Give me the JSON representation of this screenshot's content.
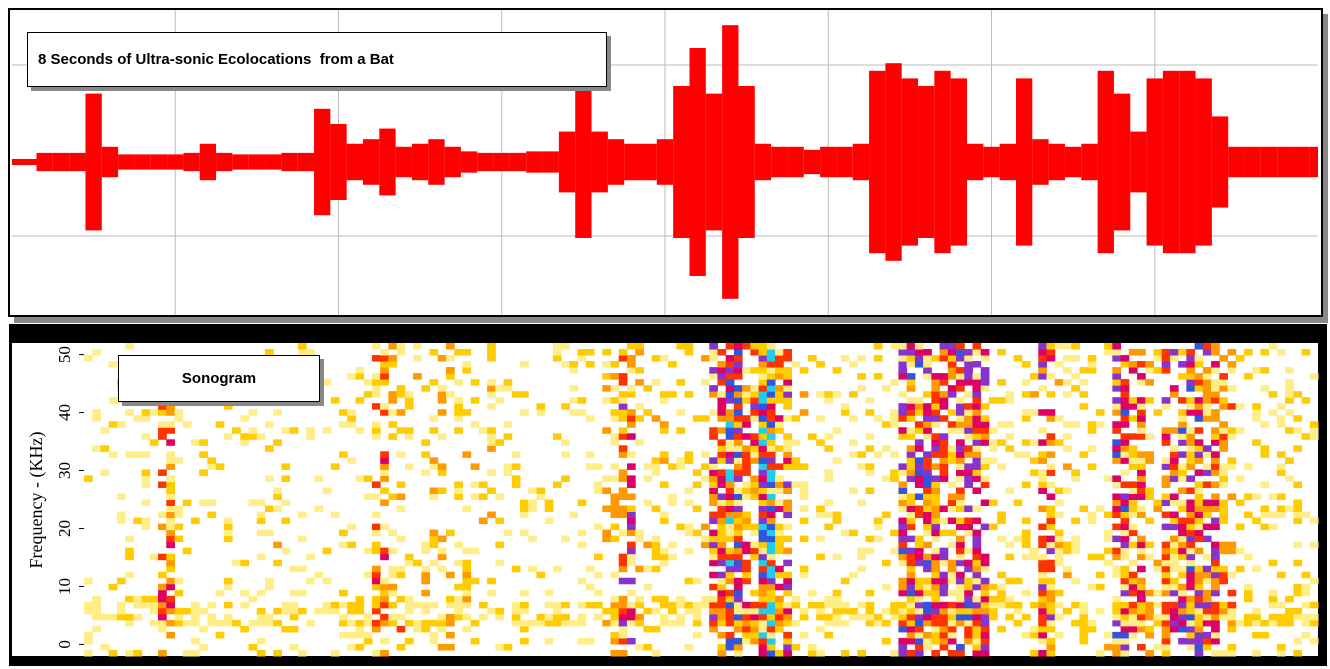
{
  "chart_data": [
    {
      "type": "waveform",
      "title": "8 Seconds of Ultra-sonic Ecolocations  from a Bat",
      "color": "#ff0000",
      "grid": true,
      "xlim": [
        0,
        8
      ],
      "x": [
        0,
        0.1,
        0.2,
        0.3,
        0.4,
        0.5,
        0.6,
        0.7,
        0.8,
        0.9,
        1,
        1.1,
        1.2,
        1.3,
        1.4,
        1.5,
        1.6,
        1.7,
        1.8,
        1.9,
        2,
        2.1,
        2.2,
        2.3,
        2.4,
        2.5,
        2.6,
        2.7,
        2.8,
        2.9,
        3,
        3.1,
        3.2,
        3.3,
        3.4,
        3.5,
        3.6,
        3.7,
        3.8,
        3.9,
        4,
        4.1,
        4.2,
        4.3,
        4.4,
        4.5,
        4.6,
        4.7,
        4.8,
        4.9,
        5,
        5.1,
        5.2,
        5.3,
        5.4,
        5.5,
        5.6,
        5.7,
        5.8,
        5.9,
        6,
        6.1,
        6.2,
        6.3,
        6.4,
        6.5,
        6.6,
        6.7,
        6.8,
        6.9,
        7,
        7.1,
        7.2,
        7.3,
        7.4,
        7.5,
        7.6,
        7.7,
        7.8,
        7.9,
        8
      ],
      "values": [
        0.02,
        0.02,
        0.06,
        0.06,
        0.06,
        0.45,
        0.1,
        0.05,
        0.05,
        0.05,
        0.05,
        0.06,
        0.12,
        0.06,
        0.05,
        0.05,
        0.05,
        0.06,
        0.06,
        0.35,
        0.25,
        0.12,
        0.15,
        0.22,
        0.1,
        0.12,
        0.15,
        0.1,
        0.07,
        0.06,
        0.06,
        0.06,
        0.07,
        0.07,
        0.2,
        0.5,
        0.2,
        0.15,
        0.12,
        0.12,
        0.15,
        0.5,
        0.75,
        0.45,
        0.9,
        0.5,
        0.12,
        0.1,
        0.1,
        0.08,
        0.1,
        0.1,
        0.12,
        0.6,
        0.65,
        0.55,
        0.5,
        0.6,
        0.55,
        0.12,
        0.1,
        0.12,
        0.55,
        0.15,
        0.12,
        0.1,
        0.12,
        0.6,
        0.45,
        0.2,
        0.55,
        0.6,
        0.6,
        0.55,
        0.3,
        0.1,
        0.1,
        0.1,
        0.1,
        0.1,
        0.1
      ]
    },
    {
      "type": "sonogram",
      "title": "Sonogram",
      "ylabel": "Frequency - (KHz)",
      "ylim": [
        -2,
        52
      ],
      "yticks": [
        0,
        10,
        20,
        30,
        40,
        50
      ]
    }
  ]
}
